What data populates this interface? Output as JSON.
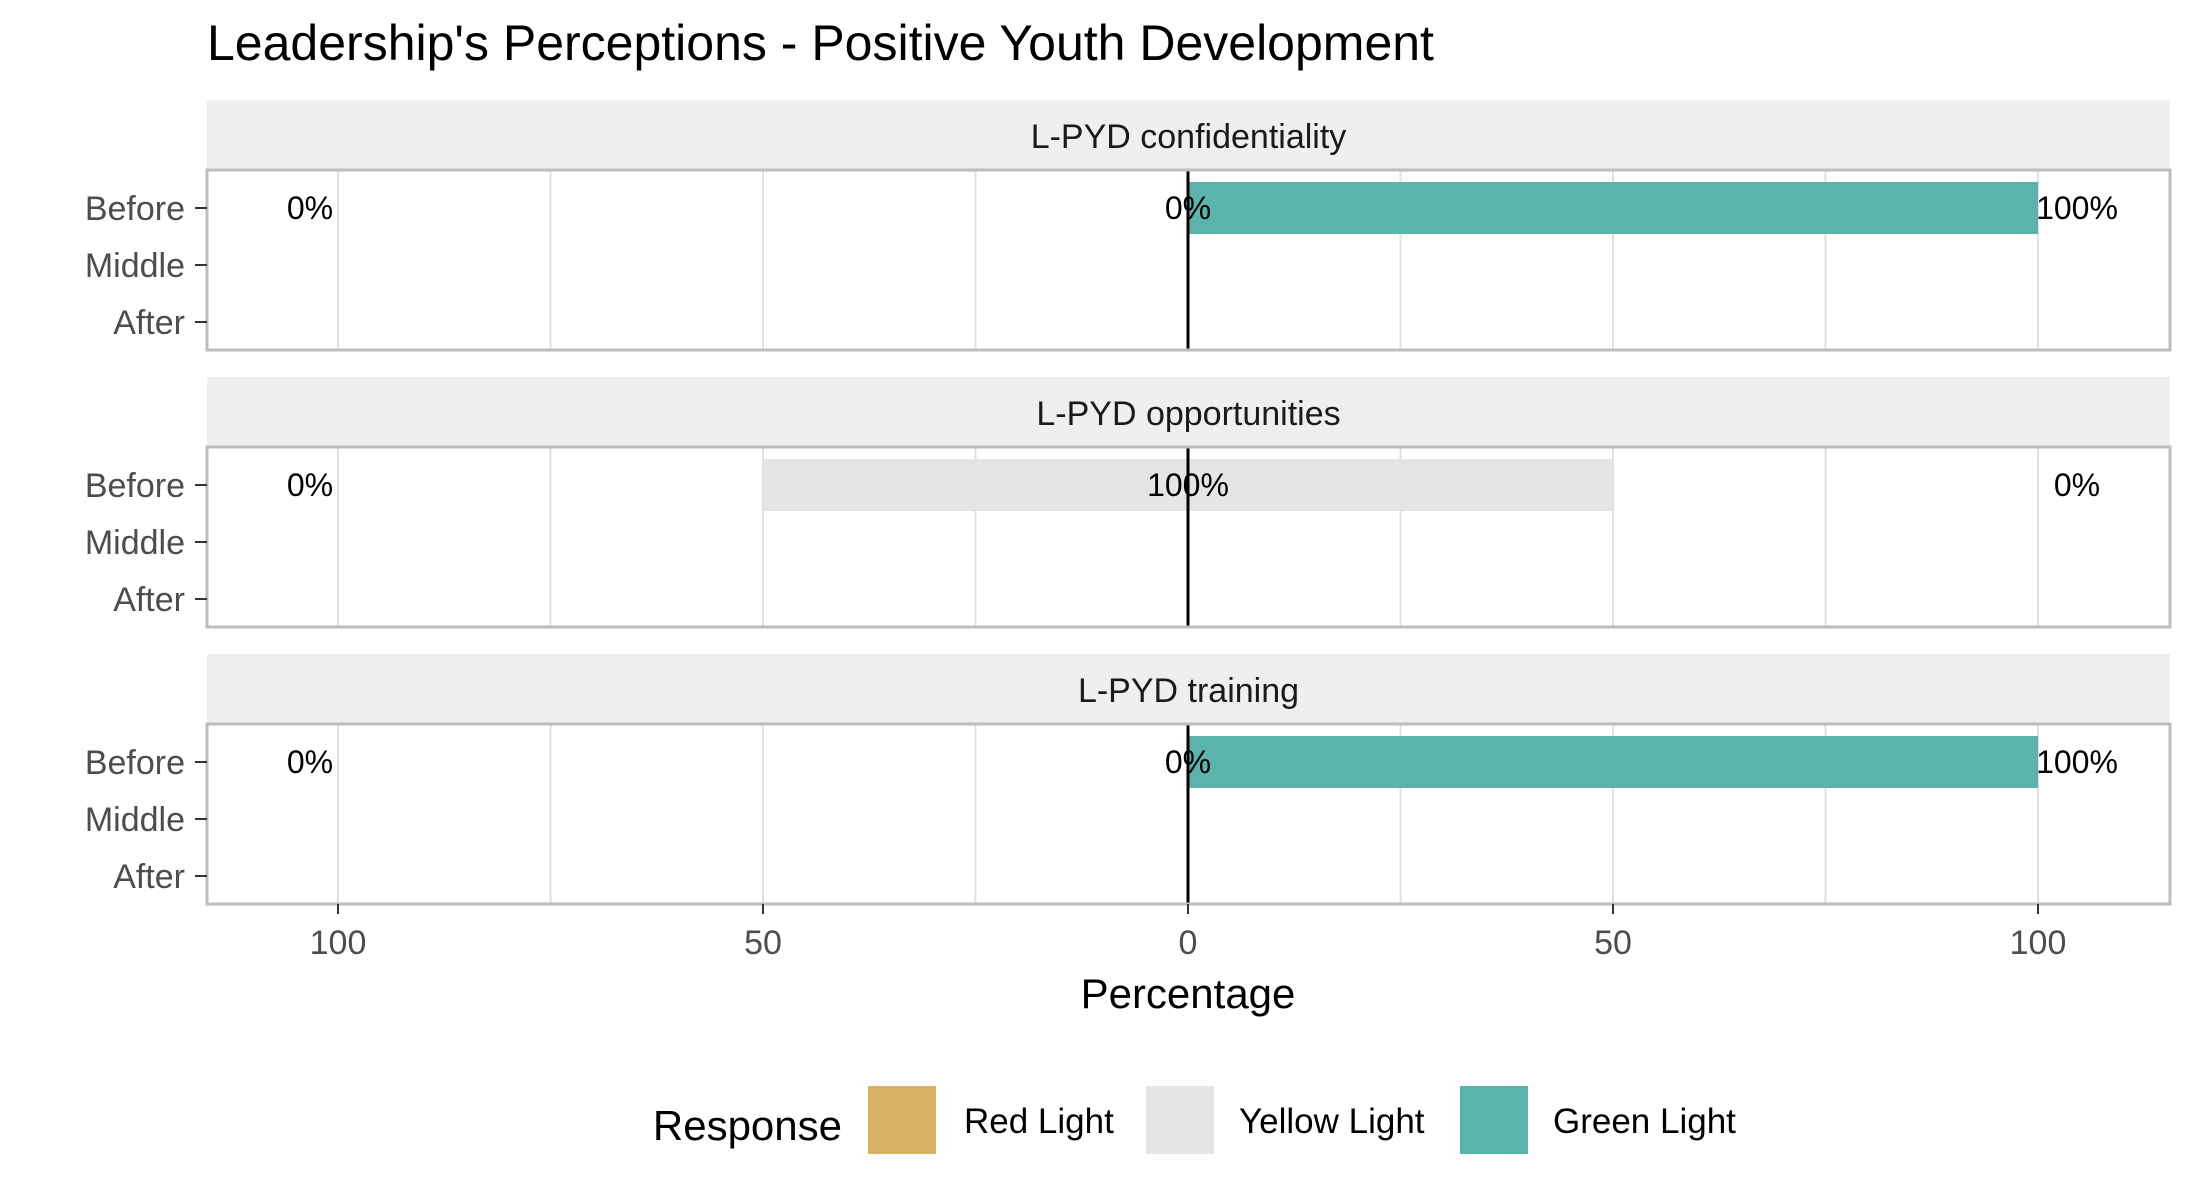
{
  "chart_data": {
    "type": "bar",
    "title": "Leadership's Perceptions - Positive Youth Development",
    "xlabel": "Percentage",
    "ylabel": "",
    "xlim": [
      -115,
      115
    ],
    "x_ticks": [
      -100,
      -50,
      0,
      50,
      100
    ],
    "x_tick_labels": [
      "100",
      "50",
      "0",
      "50",
      "100"
    ],
    "categories": [
      "Before",
      "Middle",
      "After"
    ],
    "legend": {
      "title": "Response",
      "position": "bottom",
      "items": [
        {
          "name": "Red Light",
          "color": "#d8b365"
        },
        {
          "name": "Yellow Light",
          "color": "#e5e5e5"
        },
        {
          "name": "Green Light",
          "color": "#5ab4ac"
        }
      ]
    },
    "panels": [
      {
        "name": "L-PYD confidentiality",
        "bars": [
          {
            "category": "Before",
            "red": 0,
            "yellow": 0,
            "green": 100
          }
        ],
        "labels": [
          {
            "category": "Before",
            "left": "0%",
            "center": "0%",
            "right": "100%"
          }
        ]
      },
      {
        "name": "L-PYD opportunities",
        "bars": [
          {
            "category": "Before",
            "red": 0,
            "yellow": 100,
            "green": 0
          }
        ],
        "labels": [
          {
            "category": "Before",
            "left": "0%",
            "center": "100%",
            "right": "0%"
          }
        ]
      },
      {
        "name": "L-PYD training",
        "bars": [
          {
            "category": "Before",
            "red": 0,
            "yellow": 0,
            "green": 100
          }
        ],
        "labels": [
          {
            "category": "Before",
            "left": "0%",
            "center": "0%",
            "right": "100%"
          }
        ]
      }
    ]
  }
}
